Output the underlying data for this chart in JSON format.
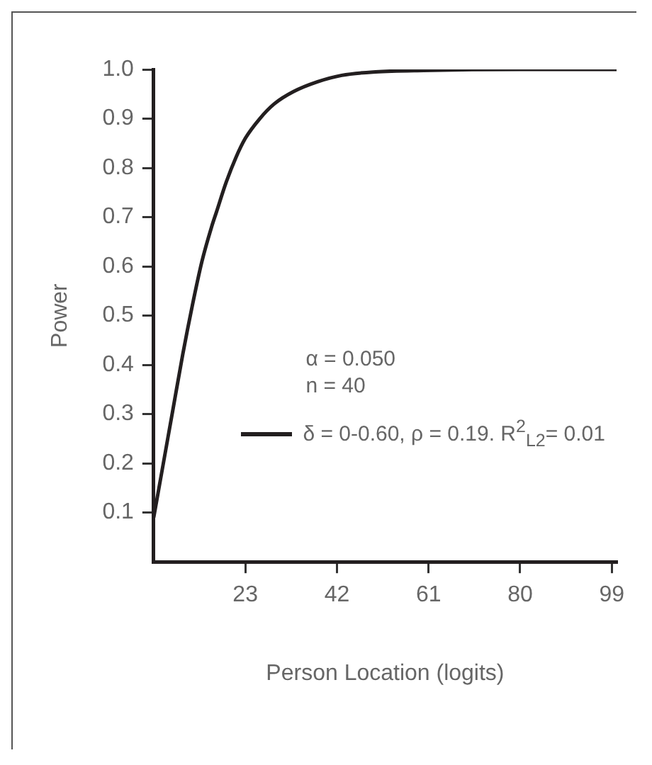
{
  "chart_data": {
    "type": "line",
    "xlabel": "Person Location (logits)",
    "ylabel": "Power",
    "xlim": [
      4,
      100
    ],
    "xticks": [
      23,
      42,
      61,
      80,
      99
    ],
    "ylim": [
      0,
      1.0
    ],
    "yticks": [
      0.1,
      0.2,
      0.3,
      0.4,
      0.5,
      0.6,
      0.7,
      0.8,
      0.9,
      {
        "value": 1.0,
        "label": "1.0"
      }
    ],
    "grid": false,
    "legend": "right",
    "marker": "none",
    "line_style": "solid",
    "annotations": [
      "α = 0.050",
      "n = 40"
    ],
    "x": [
      4,
      6,
      8,
      10,
      12,
      14,
      16,
      17,
      19,
      21,
      23,
      26,
      29,
      33,
      38,
      43,
      50,
      60,
      80,
      100
    ],
    "series": [
      {
        "name": "δ = 0-0.60, ρ = 0.19. R$^{2}$$_{L2}$= 0.01",
        "color": "#231f20",
        "values": [
          0.09,
          0.2,
          0.31,
          0.42,
          0.52,
          0.61,
          0.68,
          0.71,
          0.77,
          0.82,
          0.86,
          0.9,
          0.93,
          0.955,
          0.975,
          0.988,
          0.995,
          0.998,
          1.0,
          1.0
        ]
      }
    ]
  }
}
